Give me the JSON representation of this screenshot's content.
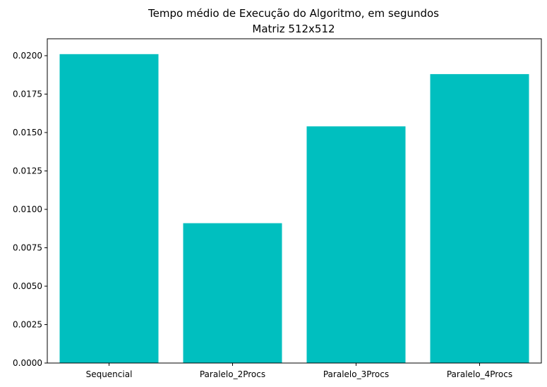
{
  "chart_data": {
    "type": "bar",
    "title": "Tempo médio de Execução do Algoritmo, em segundos",
    "subtitle": "Matriz 512x512",
    "xlabel": "",
    "ylabel": "",
    "categories": [
      "Sequencial",
      "Paralelo_2Procs",
      "Paralelo_3Procs",
      "Paralelo_4Procs"
    ],
    "values": [
      0.0201,
      0.0091,
      0.0154,
      0.0188
    ],
    "ylim": [
      0,
      0.0211
    ],
    "yticks": [
      "0.0000",
      "0.0025",
      "0.0050",
      "0.0075",
      "0.0100",
      "0.0125",
      "0.0150",
      "0.0175",
      "0.0200"
    ],
    "bar_color": "#00bfbf",
    "grid": false,
    "legend": "none"
  }
}
